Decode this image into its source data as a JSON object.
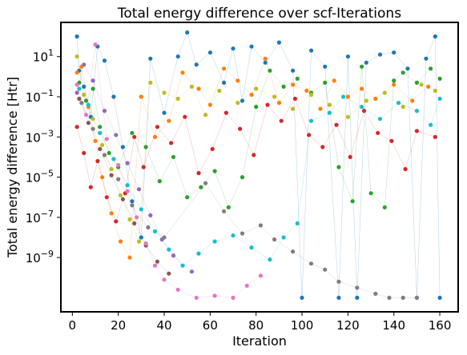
{
  "chart_data": {
    "type": "scatter",
    "title": "Total energy difference over scf-Iterations",
    "xlabel": "Iteration",
    "ylabel": "Total energy difference [Htr]",
    "xlim": [
      -5,
      168
    ],
    "ylim_log10": [
      -11.7,
      2.7
    ],
    "yscale": "log",
    "grid": false,
    "legend": "none",
    "x_ticks": [
      0,
      20,
      40,
      60,
      80,
      100,
      120,
      140,
      160
    ],
    "y_ticks": [
      {
        "exp": 1,
        "label": "10",
        "sup": "1"
      },
      {
        "exp": -1,
        "label": "10",
        "sup": "−1"
      },
      {
        "exp": -3,
        "label": "10",
        "sup": "−3"
      },
      {
        "exp": -5,
        "label": "10",
        "sup": "−5"
      },
      {
        "exp": -7,
        "label": "10",
        "sup": "−7"
      },
      {
        "exp": -9,
        "label": "10",
        "sup": "−9"
      }
    ],
    "colors": [
      "#1f77b4",
      "#ff7f0e",
      "#2ca02c",
      "#d62728",
      "#9467bd",
      "#8c564b",
      "#e377c2",
      "#7f7f7f",
      "#bcbd22",
      "#17becf"
    ],
    "series": [
      {
        "color": "#1f77b4",
        "log10_points": [
          [
            2,
            2.0
          ],
          [
            3,
            0.3
          ],
          [
            5,
            -0.5
          ],
          [
            8,
            -2.0
          ],
          [
            11,
            1.5
          ],
          [
            14,
            0.8
          ],
          [
            18,
            -1.0
          ],
          [
            22,
            -3.5
          ],
          [
            26,
            -6.2
          ],
          [
            30,
            -8.0
          ],
          [
            34,
            0.9
          ],
          [
            40,
            -1.8
          ],
          [
            46,
            1.0
          ],
          [
            50,
            2.2
          ],
          [
            54,
            0.6
          ],
          [
            60,
            1.2
          ],
          [
            66,
            -0.3
          ],
          [
            70,
            1.4
          ],
          [
            74,
            -1.2
          ],
          [
            78,
            1.5
          ],
          [
            84,
            0.7
          ],
          [
            90,
            1.7
          ],
          [
            96,
            0.3
          ],
          [
            100,
            -11.0
          ],
          [
            104,
            1.3
          ],
          [
            110,
            0.5
          ],
          [
            116,
            -11.0
          ],
          [
            120,
            1.0
          ],
          [
            124,
            -11.0
          ],
          [
            128,
            0.7
          ],
          [
            134,
            1.1
          ],
          [
            140,
            1.2
          ],
          [
            146,
            0.4
          ],
          [
            150,
            -11.0
          ],
          [
            154,
            0.9
          ],
          [
            158,
            2.0
          ],
          [
            160,
            -11.0
          ]
        ]
      },
      {
        "color": "#ff7f0e",
        "log10_points": [
          [
            2,
            0.2
          ],
          [
            4,
            0.5
          ],
          [
            7,
            -1.5
          ],
          [
            10,
            -3.2
          ],
          [
            13,
            -5.0
          ],
          [
            17,
            -6.8
          ],
          [
            21,
            -8.2
          ],
          [
            25,
            -9.0
          ],
          [
            30,
            -1.0
          ],
          [
            36,
            -3.0
          ],
          [
            42,
            -2.2
          ],
          [
            48,
            0.2
          ],
          [
            55,
            -0.6
          ],
          [
            60,
            -1.4
          ],
          [
            66,
            0.4
          ],
          [
            72,
            -0.2
          ],
          [
            78,
            -0.9
          ],
          [
            84,
            0.9
          ],
          [
            90,
            -1.3
          ],
          [
            96,
            -0.4
          ],
          [
            102,
            -0.7
          ],
          [
            108,
            -1.6
          ],
          [
            114,
            -0.2
          ],
          [
            120,
            -1.0
          ],
          [
            126,
            -0.6
          ],
          [
            132,
            -1.1
          ],
          [
            140,
            -0.4
          ],
          [
            148,
            -1.2
          ],
          [
            155,
            -0.5
          ]
        ]
      },
      {
        "color": "#2ca02c",
        "log10_points": [
          [
            3,
            -0.3
          ],
          [
            6,
            -1.2
          ],
          [
            9,
            -0.6
          ],
          [
            12,
            -2.5
          ],
          [
            16,
            -3.8
          ],
          [
            20,
            -4.5
          ],
          [
            26,
            -2.8
          ],
          [
            32,
            -3.5
          ],
          [
            38,
            -5.2
          ],
          [
            44,
            -4.0
          ],
          [
            50,
            -6.0
          ],
          [
            56,
            -5.5
          ],
          [
            62,
            -4.7
          ],
          [
            68,
            -6.5
          ],
          [
            74,
            -5.0
          ],
          [
            80,
            -1.5
          ],
          [
            86,
            0.3
          ],
          [
            92,
            -0.5
          ],
          [
            98,
            -0.1
          ],
          [
            104,
            -0.8
          ],
          [
            110,
            -0.3
          ],
          [
            116,
            -4.5
          ],
          [
            122,
            -6.2
          ],
          [
            126,
            0.5
          ],
          [
            130,
            -5.8
          ],
          [
            136,
            -6.5
          ],
          [
            140,
            -0.2
          ],
          [
            144,
            0.2
          ],
          [
            150,
            -0.3
          ],
          [
            156,
            0.4
          ],
          [
            160,
            -0.1
          ]
        ]
      },
      {
        "color": "#d62728",
        "log10_points": [
          [
            2,
            -2.5
          ],
          [
            5,
            -3.8
          ],
          [
            8,
            -5.5
          ],
          [
            11,
            -4.2
          ],
          [
            15,
            -6.0
          ],
          [
            19,
            -7.2
          ],
          [
            23,
            -5.8
          ],
          [
            27,
            -3.0
          ],
          [
            31,
            -4.5
          ],
          [
            37,
            -2.5
          ],
          [
            43,
            -3.3
          ],
          [
            49,
            -2.0
          ],
          [
            55,
            -4.8
          ],
          [
            61,
            -3.6
          ],
          [
            67,
            -1.8
          ],
          [
            73,
            -2.6
          ],
          [
            79,
            -3.9
          ],
          [
            85,
            -1.4
          ],
          [
            91,
            -2.2
          ],
          [
            97,
            -1.1
          ],
          [
            103,
            -2.9
          ],
          [
            109,
            -3.5
          ],
          [
            115,
            -2.4
          ],
          [
            121,
            -4.0
          ],
          [
            127,
            -1.7
          ],
          [
            133,
            -2.8
          ],
          [
            139,
            -3.2
          ],
          [
            145,
            -4.6
          ],
          [
            150,
            -2.7
          ],
          [
            158,
            -3.0
          ]
        ]
      },
      {
        "color": "#9467bd",
        "log10_points": [
          [
            2,
            -0.8
          ],
          [
            5,
            0.6
          ],
          [
            9,
            -0.2
          ],
          [
            14,
            -1.7
          ],
          [
            19,
            -2.9
          ],
          [
            24,
            -4.3
          ],
          [
            29,
            -5.6
          ],
          [
            34,
            -6.9
          ],
          [
            39,
            -8.1
          ],
          [
            44,
            -8.9
          ],
          [
            52,
            -9.7
          ]
        ]
      },
      {
        "color": "#8c564b",
        "log10_points": [
          [
            3,
            -1.1
          ],
          [
            7,
            -2.3
          ],
          [
            12,
            -3.6
          ],
          [
            17,
            -4.9
          ],
          [
            22,
            -6.1
          ],
          [
            27,
            -7.3
          ],
          [
            32,
            -8.4
          ],
          [
            37,
            -9.2
          ],
          [
            42,
            -9.8
          ]
        ]
      },
      {
        "color": "#e377c2",
        "log10_points": [
          [
            2,
            -0.4
          ],
          [
            6,
            -1.9
          ],
          [
            10,
            1.6
          ],
          [
            15,
            -3.1
          ],
          [
            20,
            -4.4
          ],
          [
            24,
            -5.7
          ],
          [
            28,
            -7.0
          ],
          [
            32,
            -8.3
          ],
          [
            36,
            -9.4
          ],
          [
            40,
            -10.1
          ],
          [
            46,
            -10.6
          ],
          [
            54,
            -11.0
          ],
          [
            62,
            -10.9
          ],
          [
            70,
            -11.0
          ],
          [
            76,
            -10.4
          ],
          [
            82,
            -9.9
          ]
        ]
      },
      {
        "color": "#7f7f7f",
        "log10_points": [
          [
            4,
            -1.3
          ],
          [
            9,
            -2.6
          ],
          [
            14,
            -3.9
          ],
          [
            20,
            -5.1
          ],
          [
            26,
            -6.4
          ],
          [
            33,
            -7.5
          ],
          [
            40,
            -8.0
          ],
          [
            58,
            -5.3
          ],
          [
            66,
            -6.7
          ],
          [
            74,
            -7.8
          ],
          [
            82,
            -7.4
          ],
          [
            88,
            -8.1
          ],
          [
            96,
            -8.7
          ],
          [
            104,
            -9.3
          ],
          [
            110,
            -9.6
          ],
          [
            116,
            -10.2
          ],
          [
            124,
            -10.5
          ],
          [
            132,
            -10.8
          ],
          [
            138,
            -11.0
          ],
          [
            144,
            -11.0
          ],
          [
            150,
            -11.0
          ]
        ]
      },
      {
        "color": "#bcbd22",
        "log10_points": [
          [
            2,
            1.0
          ],
          [
            5,
            -0.9
          ],
          [
            9,
            -2.1
          ],
          [
            13,
            -3.4
          ],
          [
            17,
            -4.6
          ],
          [
            21,
            -5.9
          ],
          [
            25,
            -7.1
          ],
          [
            29,
            -8.2
          ],
          [
            34,
            -0.3
          ],
          [
            40,
            -0.8
          ],
          [
            46,
            -1.1
          ],
          [
            52,
            -0.5
          ],
          [
            58,
            -1.9
          ],
          [
            64,
            -0.7
          ],
          [
            72,
            -1.3
          ],
          [
            80,
            -0.6
          ],
          [
            88,
            -1.0
          ],
          [
            96,
            -1.6
          ],
          [
            104,
            -0.9
          ],
          [
            112,
            -1.4
          ],
          [
            120,
            -2.0
          ],
          [
            128,
            -1.2
          ],
          [
            136,
            -0.8
          ],
          [
            144,
            -1.5
          ],
          [
            152,
            -0.4
          ],
          [
            158,
            -0.7
          ]
        ]
      },
      {
        "color": "#17becf",
        "log10_points": [
          [
            3,
            -0.6
          ],
          [
            7,
            -1.4
          ],
          [
            12,
            -2.8
          ],
          [
            18,
            -4.1
          ],
          [
            24,
            -5.4
          ],
          [
            30,
            -6.6
          ],
          [
            36,
            -7.7
          ],
          [
            42,
            -8.6
          ],
          [
            48,
            -9.4
          ],
          [
            55,
            -8.8
          ],
          [
            62,
            -8.2
          ],
          [
            70,
            -7.9
          ],
          [
            78,
            -8.5
          ],
          [
            86,
            -9.1
          ],
          [
            92,
            -8.0
          ],
          [
            98,
            -7.3
          ],
          [
            104,
            -2.2
          ],
          [
            112,
            -1.8
          ],
          [
            118,
            -1.0
          ],
          [
            126,
            -1.5
          ],
          [
            134,
            -2.1
          ],
          [
            142,
            -1.3
          ],
          [
            150,
            -1.7
          ],
          [
            156,
            -2.4
          ],
          [
            160,
            -1.1
          ]
        ]
      }
    ]
  }
}
